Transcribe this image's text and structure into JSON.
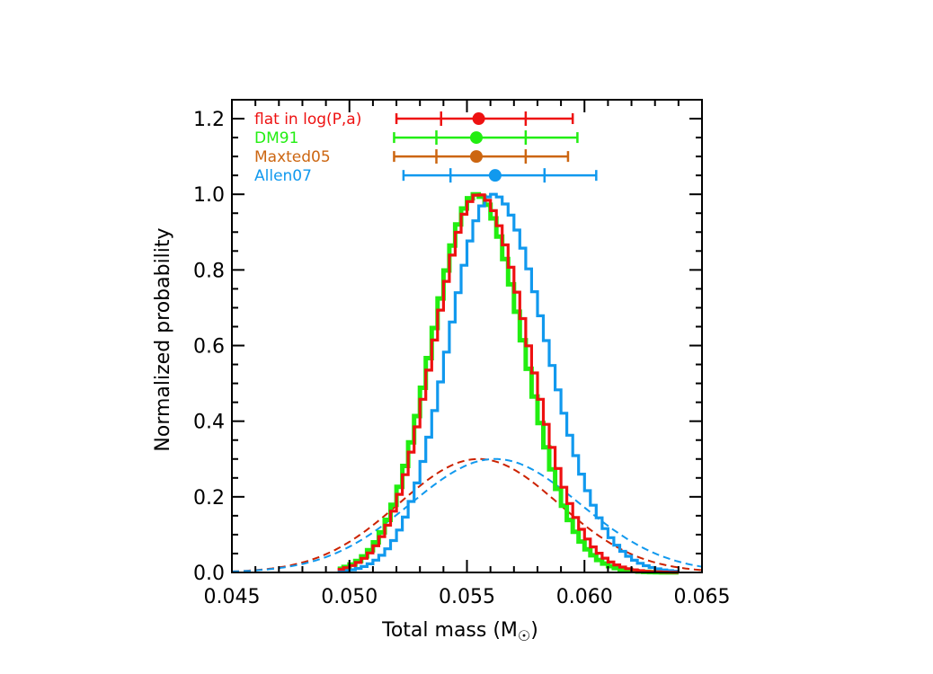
{
  "chart_data": {
    "type": "line",
    "title": "",
    "xlabel": "Total mass (M",
    "xlabel_suffix": ")",
    "ylabel": "Normalized probability",
    "xlim": [
      0.045,
      0.065
    ],
    "ylim": [
      0.0,
      1.25
    ],
    "x_ticks": [
      0.045,
      0.05,
      0.055,
      0.06,
      0.065
    ],
    "x_tick_labels": [
      "0.045",
      "0.050",
      "0.055",
      "0.060",
      "0.065"
    ],
    "y_ticks": [
      0.0,
      0.2,
      0.4,
      0.6,
      0.8,
      1.0,
      1.2
    ],
    "y_tick_labels": [
      "0.0",
      "0.2",
      "0.4",
      "0.6",
      "0.8",
      "1.0",
      "1.2"
    ],
    "grid": false,
    "legend_placement": "top-left",
    "series": [
      {
        "name": "flat in log(P,a)",
        "color": "#ee1111",
        "style": "histogram",
        "center": 0.0555,
        "sigma": 0.0019,
        "skew_sigma_right": 0.0021,
        "summary": {
          "median": 0.0555,
          "inner": [
            0.0539,
            0.0575
          ],
          "outer": [
            0.052,
            0.0595
          ],
          "y": 1.2
        }
      },
      {
        "name": "DM91",
        "color": "#22ee11",
        "style": "histogram",
        "center": 0.0554,
        "sigma": 0.0019,
        "skew_sigma_right": 0.002,
        "summary": {
          "median": 0.0554,
          "inner": [
            0.0537,
            0.0575
          ],
          "outer": [
            0.0519,
            0.0597
          ],
          "y": 1.15
        }
      },
      {
        "name": "Maxted05",
        "color": "#cc6611",
        "style": "none",
        "summary": {
          "median": 0.0554,
          "inner": [
            0.0537,
            0.0575
          ],
          "outer": [
            0.0519,
            0.0593
          ],
          "y": 1.1
        }
      },
      {
        "name": "Allen07",
        "color": "#1199ee",
        "style": "histogram",
        "center": 0.0561,
        "sigma": 0.0019,
        "skew_sigma_right": 0.0023,
        "summary": {
          "median": 0.0562,
          "inner": [
            0.0543,
            0.0583
          ],
          "outer": [
            0.0523,
            0.0605
          ],
          "y": 1.05
        }
      }
    ],
    "priors": [
      {
        "series": "flat in log(P,a)",
        "color": "#cc2200",
        "style": "dashed",
        "center": 0.0555,
        "sigma": 0.0034,
        "peak": 0.3
      },
      {
        "series": "Allen07",
        "color": "#1199ee",
        "style": "dashed",
        "center": 0.0562,
        "sigma": 0.0036,
        "peak": 0.3
      }
    ]
  }
}
